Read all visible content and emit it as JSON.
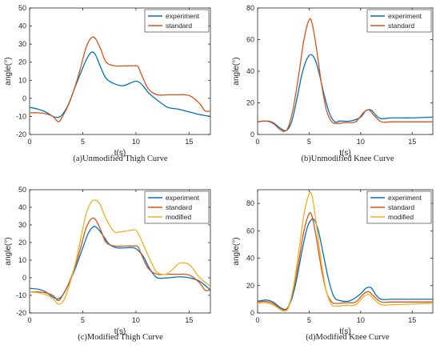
{
  "chart_data": [
    {
      "type": "line",
      "caption": "(a)Unmodified Thigh Curve",
      "xlabel": "t(s)",
      "ylabel": "angle(°)",
      "xlim": [
        0,
        17
      ],
      "ylim": [
        -20,
        50
      ],
      "xticks": [
        0,
        5,
        10,
        15
      ],
      "yticks": [
        -20,
        -10,
        0,
        10,
        20,
        30,
        40,
        50
      ],
      "grid": false,
      "legend_position": "top-right",
      "series": [
        {
          "name": "experiment",
          "color": "#0072BD",
          "x": [
            0,
            0.8,
            1.5,
            2.2,
            2.6,
            3.0,
            3.6,
            4.2,
            4.8,
            5.3,
            5.8,
            6.2,
            6.7,
            7.2,
            8.0,
            8.8,
            9.5,
            10.0,
            10.5,
            11.2,
            12.0,
            13.0,
            14.0,
            15.0,
            16.0,
            17.0
          ],
          "y": [
            -5,
            -6,
            -7.5,
            -10,
            -10.5,
            -9.5,
            -4,
            5,
            14,
            21,
            25.5,
            24,
            17,
            11,
            8,
            7,
            8.5,
            9.5,
            8,
            3,
            -1,
            -5,
            -6,
            -7.5,
            -9,
            -10
          ]
        },
        {
          "name": "standard",
          "color": "#D95319",
          "x": [
            0,
            0.8,
            1.5,
            2.2,
            2.7,
            3.1,
            3.7,
            4.3,
            4.8,
            5.3,
            5.8,
            6.2,
            6.7,
            7.2,
            8.0,
            9.0,
            9.8,
            10.2,
            10.6,
            11.2,
            12.0,
            13.0,
            14.0,
            14.6,
            15.2,
            16.0,
            16.5,
            17.0
          ],
          "y": [
            -8,
            -8,
            -8.5,
            -10,
            -13,
            -10,
            -3,
            7,
            17,
            28,
            33.5,
            33,
            27,
            20,
            18,
            18,
            18,
            17.5,
            12,
            5,
            2,
            2,
            2,
            2,
            1,
            -3,
            -7,
            -7
          ]
        }
      ]
    },
    {
      "type": "line",
      "caption": "(b)Unmodified Knee Curve",
      "xlabel": "t(s)",
      "ylabel": "angle(°)",
      "xlim": [
        0,
        17
      ],
      "ylim": [
        0,
        80
      ],
      "xticks": [
        0,
        5,
        10,
        15
      ],
      "yticks": [
        0,
        20,
        40,
        60,
        80
      ],
      "grid": false,
      "legend_position": "top-right",
      "series": [
        {
          "name": "experiment",
          "color": "#0072BD",
          "x": [
            0,
            0.8,
            1.5,
            2.2,
            2.8,
            3.3,
            3.8,
            4.3,
            4.8,
            5.2,
            5.6,
            6.0,
            6.5,
            7.0,
            7.5,
            8.0,
            9.0,
            10.0,
            10.5,
            11.0,
            11.5,
            12.0,
            13.0,
            15.0,
            17.0
          ],
          "y": [
            8,
            8.5,
            7.5,
            4,
            2.5,
            8,
            22,
            38,
            48,
            50.5,
            47,
            38,
            24,
            13,
            8,
            8.5,
            8.5,
            11,
            15,
            15.5,
            12,
            10,
            10.5,
            10.5,
            11
          ]
        },
        {
          "name": "standard",
          "color": "#D95319",
          "x": [
            0,
            0.8,
            1.5,
            2.2,
            2.6,
            3.0,
            3.5,
            4.0,
            4.5,
            5.0,
            5.3,
            5.7,
            6.2,
            6.7,
            7.2,
            7.7,
            8.5,
            9.5,
            10.3,
            10.8,
            11.3,
            12.0,
            13.0,
            15.0,
            17.0
          ],
          "y": [
            8,
            8.5,
            7,
            3,
            2,
            5,
            18,
            38,
            60,
            72.5,
            70,
            55,
            32,
            15,
            8,
            7,
            7.5,
            8,
            14,
            15.5,
            12,
            8,
            8,
            8,
            8
          ]
        }
      ]
    },
    {
      "type": "line",
      "caption": "(c)Modified Thigh Curve",
      "xlabel": "t(s)",
      "ylabel": "angle(°)",
      "xlim": [
        0,
        17
      ],
      "ylim": [
        -20,
        50
      ],
      "xticks": [
        0,
        5,
        10,
        15
      ],
      "yticks": [
        -20,
        -10,
        0,
        10,
        20,
        30,
        40,
        50
      ],
      "grid": false,
      "legend_position": "top-right",
      "series": [
        {
          "name": "experiment",
          "color": "#0072BD",
          "x": [
            0,
            0.8,
            1.5,
            2.2,
            2.7,
            3.2,
            3.8,
            4.4,
            5.0,
            5.5,
            6.0,
            6.4,
            6.9,
            7.5,
            8.2,
            9.0,
            9.8,
            10.3,
            10.8,
            11.3,
            12.0,
            13.0,
            14.0,
            15.0,
            16.0,
            17.0
          ],
          "y": [
            -6,
            -6.5,
            -8,
            -11,
            -12,
            -9,
            -2,
            7,
            17,
            25,
            29,
            28,
            24,
            19,
            17,
            17,
            17,
            15,
            11,
            5,
            0,
            0,
            0.5,
            0,
            -2,
            -7
          ]
        },
        {
          "name": "standard",
          "color": "#D95319",
          "x": [
            0,
            0.8,
            1.5,
            2.2,
            2.7,
            3.1,
            3.7,
            4.3,
            4.8,
            5.3,
            5.8,
            6.2,
            6.7,
            7.2,
            8.0,
            9.0,
            9.8,
            10.2,
            10.6,
            11.2,
            12.0,
            13.0,
            14.0,
            14.6,
            15.2,
            16.0,
            16.5,
            17.0
          ],
          "y": [
            -8,
            -8,
            -8.5,
            -10,
            -13,
            -10,
            -3,
            7,
            17,
            28,
            33.5,
            33,
            27,
            20,
            18,
            18,
            18,
            17.5,
            12,
            5,
            2,
            2,
            2,
            2,
            1,
            -3,
            -7,
            -7
          ]
        },
        {
          "name": "modified",
          "color": "#EDB120",
          "x": [
            0,
            0.8,
            1.5,
            2.2,
            2.7,
            3.2,
            3.7,
            4.3,
            4.8,
            5.3,
            5.8,
            6.2,
            6.6,
            7.0,
            7.5,
            8.0,
            8.5,
            9.0,
            9.6,
            10.0,
            10.4,
            10.9,
            11.5,
            12.0,
            12.8,
            13.5,
            14.0,
            14.5,
            15.0,
            15.5,
            16.0,
            17.0
          ],
          "y": [
            -8,
            -8.5,
            -9.5,
            -12,
            -15,
            -13,
            -5,
            8,
            22,
            36,
            43,
            44,
            42,
            36,
            30,
            26,
            26,
            26.5,
            27,
            27,
            23,
            16,
            8,
            3,
            2,
            5,
            8,
            8.5,
            7.5,
            4,
            0,
            -5
          ]
        }
      ]
    },
    {
      "type": "line",
      "caption": "(d)Modified Knee Curve",
      "xlabel": "t(s)",
      "ylabel": "angle(°)",
      "xlim": [
        0,
        17
      ],
      "ylim": [
        0,
        90
      ],
      "xticks": [
        0,
        5,
        10,
        15
      ],
      "yticks": [
        0,
        20,
        40,
        60,
        80
      ],
      "grid": false,
      "legend_position": "top-right",
      "series": [
        {
          "name": "experiment",
          "color": "#0072BD",
          "x": [
            0,
            0.8,
            1.5,
            2.2,
            2.8,
            3.3,
            3.8,
            4.3,
            4.8,
            5.2,
            5.5,
            5.9,
            6.4,
            6.9,
            7.4,
            8.0,
            9.0,
            10.0,
            10.5,
            11.0,
            11.5,
            12.0,
            13.0,
            15.0,
            17.0
          ],
          "y": [
            8.5,
            9.5,
            8,
            4,
            3,
            10,
            25,
            45,
            62,
            68,
            68,
            60,
            42,
            24,
            12,
            9,
            9,
            14,
            18,
            18.5,
            13,
            10,
            10,
            10,
            10
          ]
        },
        {
          "name": "standard",
          "color": "#D95319",
          "x": [
            0,
            0.8,
            1.5,
            2.2,
            2.6,
            3.0,
            3.5,
            4.0,
            4.5,
            5.0,
            5.3,
            5.7,
            6.2,
            6.7,
            7.2,
            7.7,
            8.5,
            9.5,
            10.3,
            10.8,
            11.3,
            12.0,
            13.0,
            15.0,
            17.0
          ],
          "y": [
            8,
            8.5,
            7,
            3,
            2,
            5,
            18,
            38,
            60,
            72.5,
            70,
            55,
            32,
            15,
            8,
            7,
            7.5,
            8,
            14,
            15.5,
            12,
            8,
            8,
            8,
            8
          ]
        },
        {
          "name": "modified",
          "color": "#EDB120",
          "x": [
            0,
            0.8,
            1.5,
            2.2,
            2.6,
            3.0,
            3.5,
            4.0,
            4.5,
            5.0,
            5.3,
            5.7,
            6.2,
            6.7,
            7.2,
            7.7,
            8.5,
            9.5,
            10.3,
            10.8,
            11.3,
            12.0,
            13.0,
            15.0,
            17.0
          ],
          "y": [
            7,
            7.5,
            6,
            2.5,
            1.5,
            4,
            20,
            45,
            72,
            87,
            85,
            65,
            36,
            15,
            6,
            5,
            5.5,
            6,
            12,
            13.5,
            10,
            6,
            6,
            6.5,
            7
          ]
        }
      ]
    }
  ]
}
